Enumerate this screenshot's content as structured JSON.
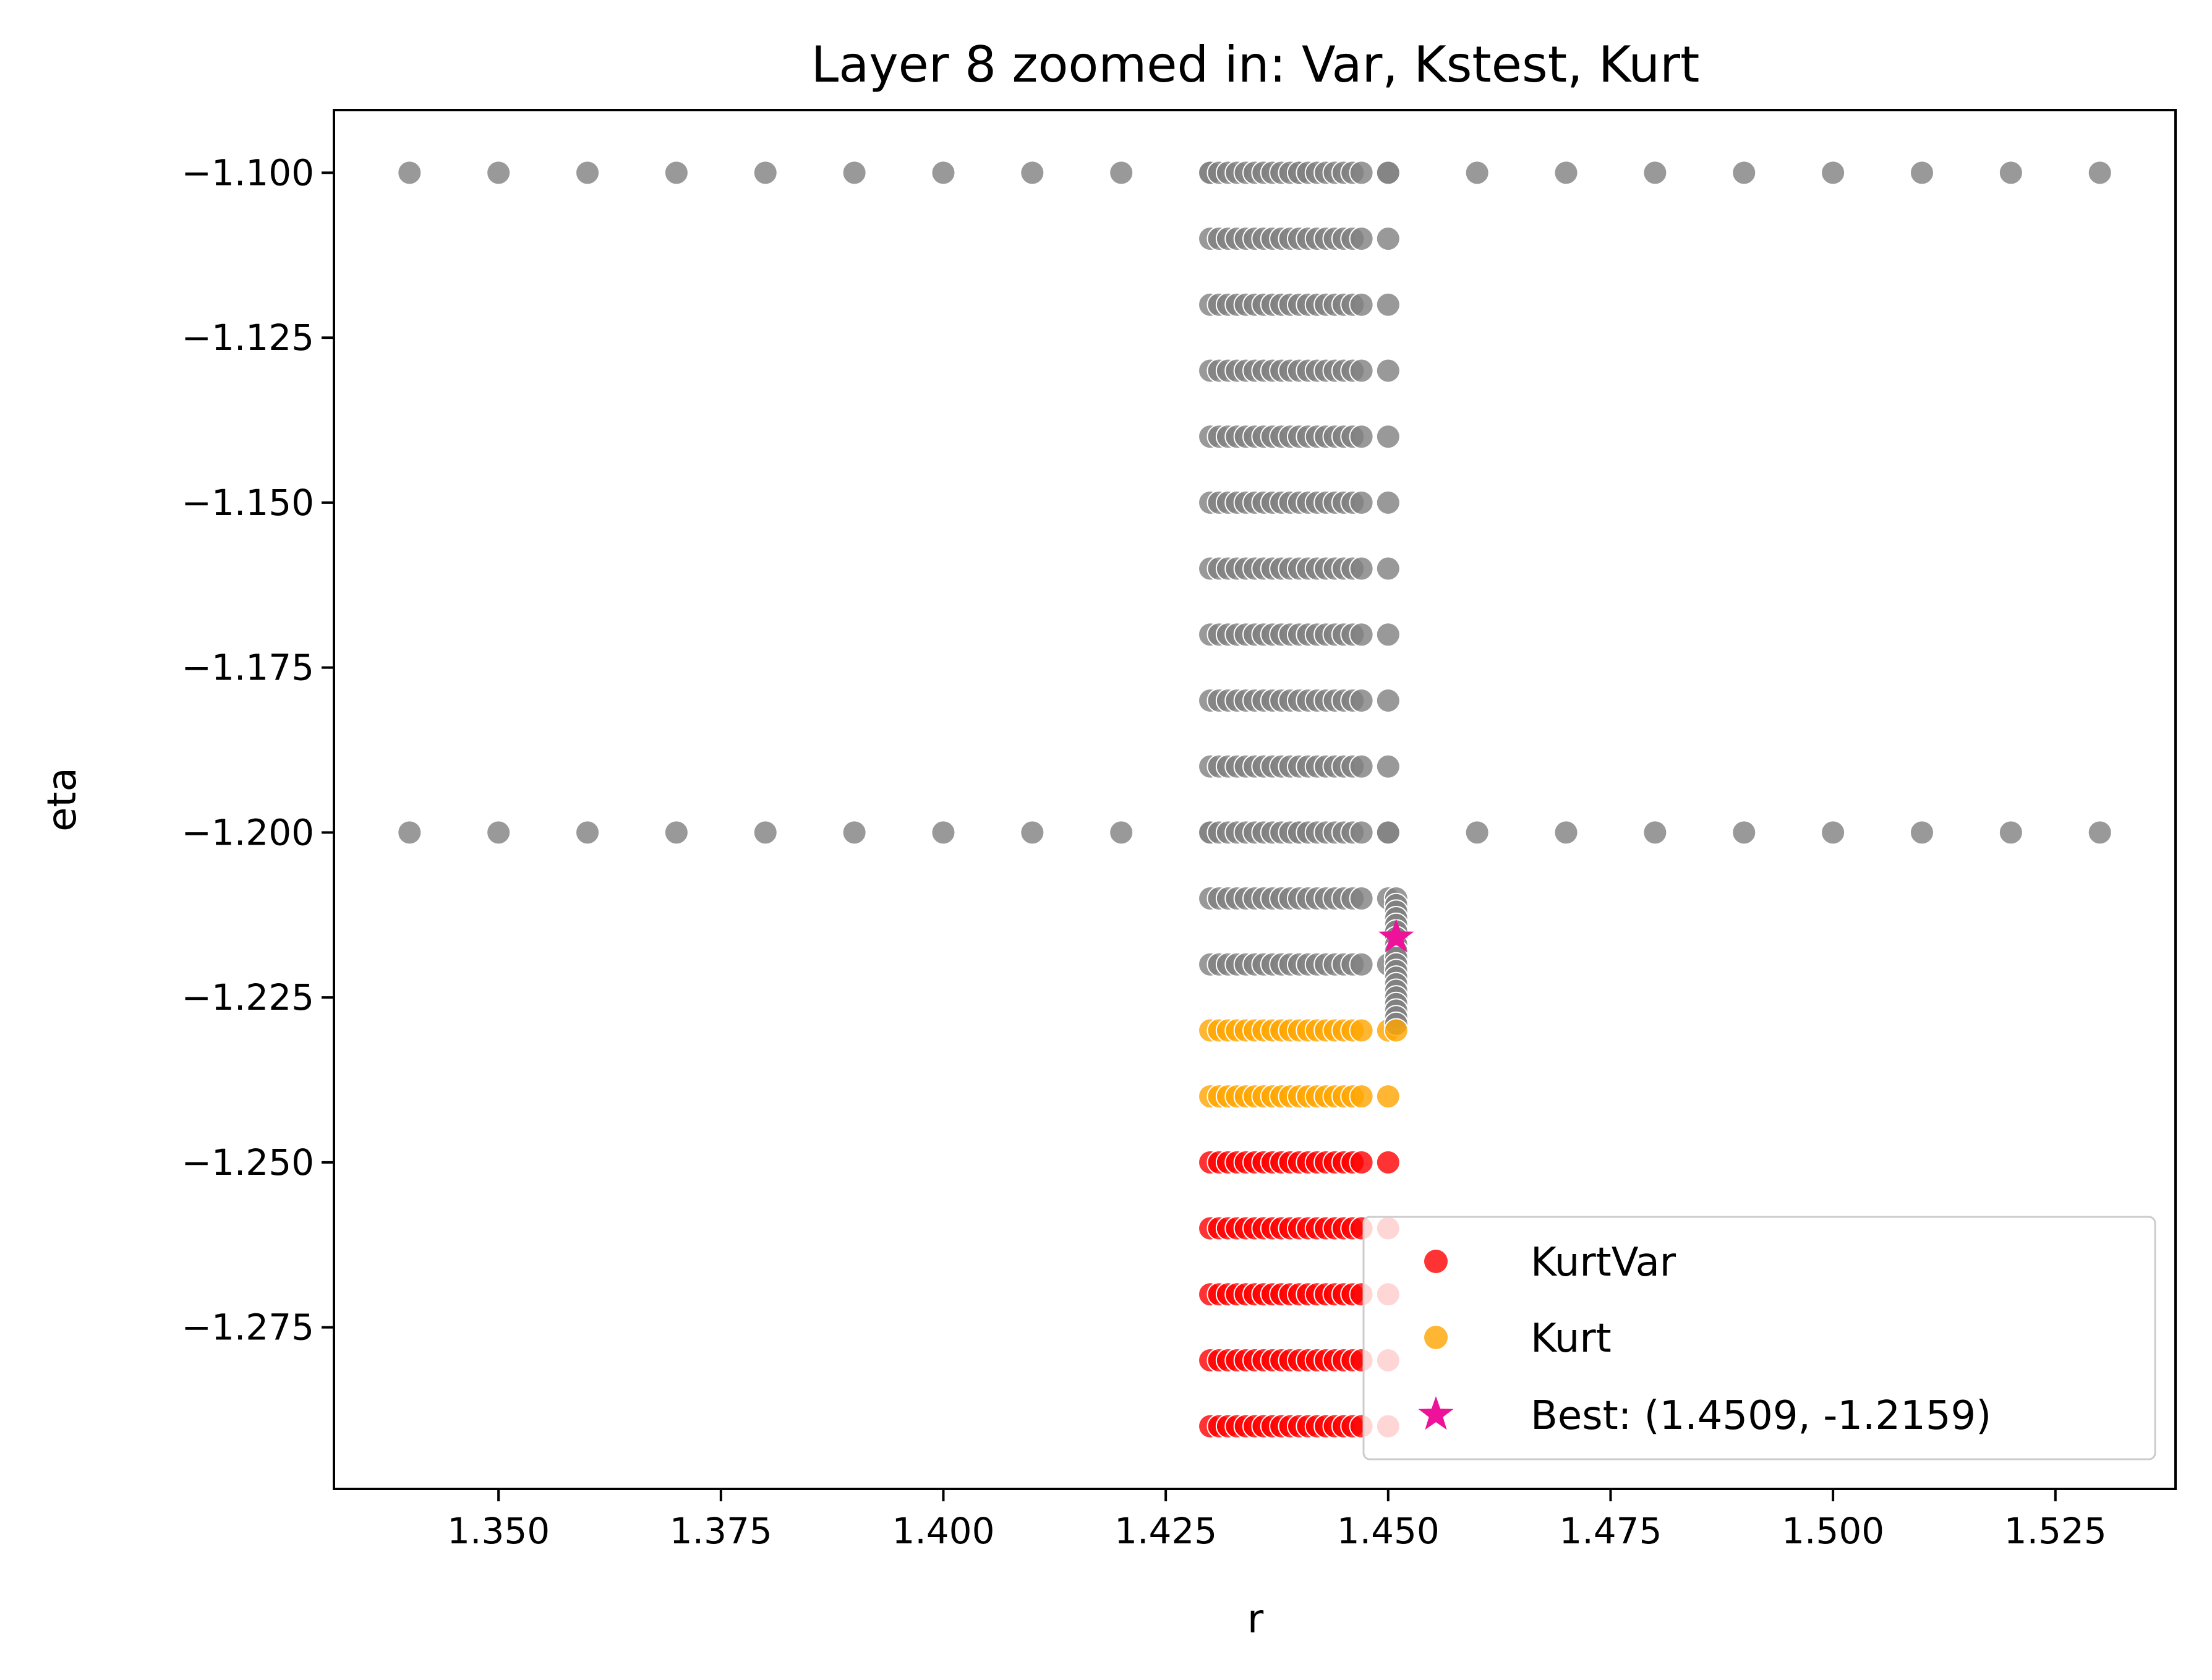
{
  "chart_data": {
    "type": "scatter",
    "title": "Layer 8 zoomed in: Var, Kstest, Kurt",
    "xlabel": "r",
    "ylabel": "eta",
    "xlim": [
      1.3315,
      1.5385
    ],
    "ylim": [
      -1.2995,
      -1.0905
    ],
    "x_ticks": [
      1.35,
      1.375,
      1.4,
      1.425,
      1.45,
      1.475,
      1.5,
      1.525
    ],
    "x_tick_labels": [
      "1.350",
      "1.375",
      "1.400",
      "1.425",
      "1.450",
      "1.475",
      "1.500",
      "1.525"
    ],
    "y_ticks": [
      -1.1,
      -1.125,
      -1.15,
      -1.175,
      -1.2,
      -1.225,
      -1.25,
      -1.275
    ],
    "y_tick_labels": [
      "−1.100",
      "−1.125",
      "−1.150",
      "−1.175",
      "−1.200",
      "−1.225",
      "−1.250",
      "−1.275"
    ],
    "grid": false,
    "legend_position": "lower-right",
    "colors": {
      "other": "#808080",
      "kurtvar": "#ff0000",
      "kurt": "#ffa500",
      "best": "#ee1199"
    },
    "grid_points": {
      "coarse_r": [
        1.34,
        1.35,
        1.36,
        1.37,
        1.38,
        1.39,
        1.4,
        1.41,
        1.42,
        1.43,
        1.44,
        1.45,
        1.46,
        1.47,
        1.48,
        1.49,
        1.5,
        1.51,
        1.52,
        1.53
      ],
      "coarse_eta": [
        -1.1,
        -1.2
      ],
      "fine_r_start": 1.43,
      "fine_r_end": 1.447,
      "fine_r_step": 0.001,
      "fine_r_extra": [
        1.45
      ],
      "fine_eta_start": -1.1,
      "fine_eta_end": -1.29,
      "fine_eta_step": -0.01,
      "column_r": 1.4509,
      "column_eta_start": -1.21,
      "column_eta_end": -1.23,
      "column_eta_step": -0.001,
      "orange_eta": [
        -1.23,
        -1.24
      ],
      "red_eta_max": -1.25
    },
    "series": [
      {
        "name": "KurtVar",
        "marker": "circle",
        "color": "#ff0000"
      },
      {
        "name": "Kurt",
        "marker": "circle",
        "color": "#ffa500"
      },
      {
        "name": "Best: (1.4509, -1.2159)",
        "marker": "star",
        "color": "#ee1199",
        "x": 1.4509,
        "y": -1.2159
      }
    ]
  }
}
